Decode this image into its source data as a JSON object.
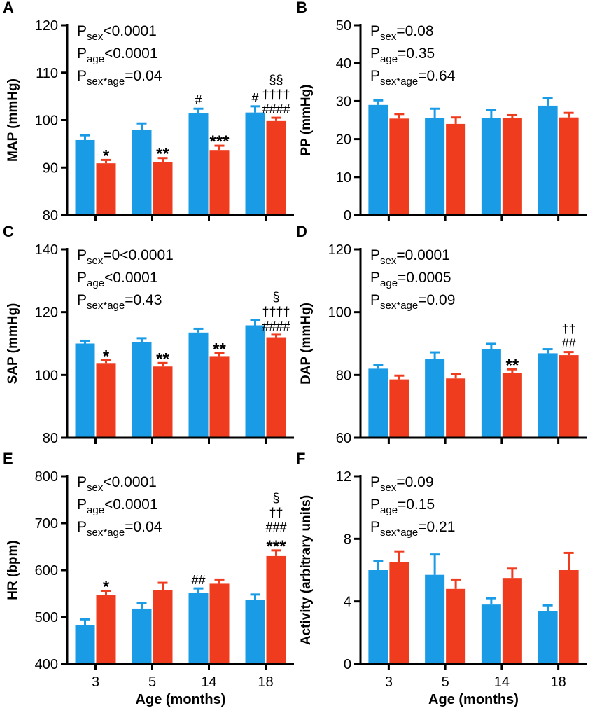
{
  "colors": {
    "series_1": "#1a9be6",
    "series_2": "#f03c1e",
    "axis": "#000000"
  },
  "xlabel": "Age (months)",
  "chart_data": [
    {
      "panel": "A",
      "type": "bar",
      "categories": [
        "3",
        "5",
        "14",
        "18"
      ],
      "ylabel": "MAP (mmHg)",
      "ylim": [
        80,
        120
      ],
      "yticks": [
        80,
        90,
        100,
        110,
        120
      ],
      "series": [
        {
          "values": [
            95.8,
            98.0,
            101.4,
            101.6
          ],
          "errors": [
            1.0,
            1.3,
            1.0,
            1.3
          ]
        },
        {
          "values": [
            90.9,
            91.1,
            93.7,
            99.8
          ],
          "errors": [
            0.7,
            0.9,
            0.9,
            0.7
          ]
        }
      ],
      "stats": [
        {
          "base": "P",
          "sub": "sex",
          "rest": "<0.0001"
        },
        {
          "base": "P",
          "sub": "age",
          "rest": "<0.0001"
        },
        {
          "base": "P",
          "sub": "sex*age",
          "rest": "=0.04"
        }
      ],
      "annotations": [
        {
          "series": 1,
          "cat": 0,
          "lines": [
            "*"
          ]
        },
        {
          "series": 1,
          "cat": 1,
          "lines": [
            "**"
          ]
        },
        {
          "series": 0,
          "cat": 2,
          "lines": [
            "#"
          ]
        },
        {
          "series": 1,
          "cat": 2,
          "lines": [
            "***"
          ]
        },
        {
          "series": 0,
          "cat": 3,
          "lines": [
            "#"
          ]
        },
        {
          "series": 1,
          "cat": 3,
          "lines": [
            "§§",
            "††††",
            "####"
          ]
        }
      ]
    },
    {
      "panel": "B",
      "type": "bar",
      "categories": [
        "3",
        "5",
        "14",
        "18"
      ],
      "ylabel": "PP (mmHg)",
      "ylim": [
        0,
        50
      ],
      "yticks": [
        0,
        10,
        20,
        30,
        40,
        50
      ],
      "series": [
        {
          "values": [
            29.0,
            25.5,
            25.5,
            28.8
          ],
          "errors": [
            1.2,
            2.5,
            2.2,
            2.0
          ]
        },
        {
          "values": [
            25.4,
            24.0,
            25.5,
            25.7
          ],
          "errors": [
            1.2,
            1.7,
            0.8,
            1.2
          ]
        }
      ],
      "stats": [
        {
          "base": "P",
          "sub": "sex",
          "rest": "=0.08"
        },
        {
          "base": "P",
          "sub": "age",
          "rest": "=0.35"
        },
        {
          "base": "P",
          "sub": "sex*age",
          "rest": "=0.64"
        }
      ],
      "annotations": []
    },
    {
      "panel": "C",
      "type": "bar",
      "categories": [
        "3",
        "5",
        "14",
        "18"
      ],
      "ylabel": "SAP (mmHg)",
      "ylim": [
        80,
        140
      ],
      "yticks": [
        80,
        100,
        120,
        140
      ],
      "series": [
        {
          "values": [
            110.0,
            110.5,
            113.5,
            115.8
          ],
          "errors": [
            0.9,
            1.2,
            1.2,
            1.6
          ]
        },
        {
          "values": [
            103.8,
            102.7,
            106.0,
            112.0
          ],
          "errors": [
            0.9,
            1.1,
            0.9,
            0.8
          ]
        }
      ],
      "stats": [
        {
          "base": "P",
          "sub": "sex",
          "rest": "=0<0.0001"
        },
        {
          "base": "P",
          "sub": "age",
          "rest": "<0.0001"
        },
        {
          "base": "P",
          "sub": "sex*age",
          "rest": "=0.43"
        }
      ],
      "annotations": [
        {
          "series": 1,
          "cat": 0,
          "lines": [
            "*"
          ]
        },
        {
          "series": 1,
          "cat": 1,
          "lines": [
            "**"
          ]
        },
        {
          "series": 1,
          "cat": 2,
          "lines": [
            "**"
          ]
        },
        {
          "series": 1,
          "cat": 3,
          "lines": [
            "§",
            "††††",
            "####"
          ]
        }
      ]
    },
    {
      "panel": "D",
      "type": "bar",
      "categories": [
        "3",
        "5",
        "14",
        "18"
      ],
      "ylabel": "DAP (mmHg)",
      "ylim": [
        60,
        120
      ],
      "yticks": [
        60,
        80,
        100,
        120
      ],
      "series": [
        {
          "values": [
            82.0,
            85.0,
            88.2,
            86.9
          ],
          "errors": [
            1.2,
            2.2,
            1.7,
            1.3
          ]
        },
        {
          "values": [
            78.6,
            78.9,
            80.6,
            86.3
          ],
          "errors": [
            1.2,
            1.3,
            1.2,
            1.0
          ]
        }
      ],
      "stats": [
        {
          "base": "P",
          "sub": "sex",
          "rest": "=0.0001"
        },
        {
          "base": "P",
          "sub": "age",
          "rest": "=0.0005"
        },
        {
          "base": "P",
          "sub": "sex*age",
          "rest": "=0.09"
        }
      ],
      "annotations": [
        {
          "series": 1,
          "cat": 2,
          "lines": [
            "**"
          ]
        },
        {
          "series": 1,
          "cat": 3,
          "lines": [
            "††",
            "##"
          ]
        }
      ]
    },
    {
      "panel": "E",
      "type": "bar",
      "categories": [
        "3",
        "5",
        "14",
        "18"
      ],
      "ylabel": "HR (bpm)",
      "ylim": [
        400,
        800
      ],
      "yticks": [
        400,
        500,
        600,
        700,
        800
      ],
      "series": [
        {
          "values": [
            483,
            518,
            551,
            536
          ],
          "errors": [
            12,
            12,
            10,
            12
          ]
        },
        {
          "values": [
            547,
            557,
            571,
            630
          ],
          "errors": [
            9,
            16,
            9,
            12
          ]
        }
      ],
      "stats": [
        {
          "base": "P",
          "sub": "sex",
          "rest": "<0.0001"
        },
        {
          "base": "P",
          "sub": "age",
          "rest": "<0.0001"
        },
        {
          "base": "P",
          "sub": "sex*age",
          "rest": "=0.04"
        }
      ],
      "annotations": [
        {
          "series": 1,
          "cat": 0,
          "lines": [
            "*"
          ]
        },
        {
          "series": 0,
          "cat": 2,
          "lines": [
            "##"
          ]
        },
        {
          "series": 1,
          "cat": 3,
          "lines": [
            "§",
            "††",
            "###",
            "***"
          ]
        }
      ]
    },
    {
      "panel": "F",
      "type": "bar",
      "categories": [
        "3",
        "5",
        "14",
        "18"
      ],
      "ylabel": "Activity (arbitrary units)",
      "ylim": [
        0,
        12
      ],
      "yticks": [
        0,
        4,
        8,
        12
      ],
      "series": [
        {
          "values": [
            6.0,
            5.7,
            3.8,
            3.4
          ],
          "errors": [
            0.6,
            1.3,
            0.4,
            0.35
          ]
        },
        {
          "values": [
            6.5,
            4.8,
            5.5,
            6.0
          ],
          "errors": [
            0.7,
            0.6,
            0.6,
            1.1
          ]
        }
      ],
      "stats": [
        {
          "base": "P",
          "sub": "sex",
          "rest": "=0.09"
        },
        {
          "base": "P",
          "sub": "age",
          "rest": "=0.15"
        },
        {
          "base": "P",
          "sub": "sex*age",
          "rest": "=0.21"
        }
      ],
      "annotations": []
    }
  ]
}
